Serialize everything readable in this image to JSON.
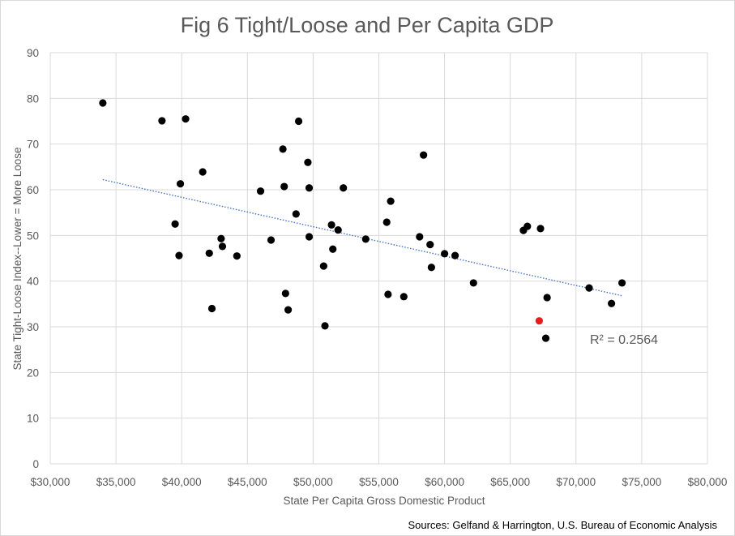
{
  "chart_data": {
    "type": "scatter",
    "title": "Fig 6 Tight/Loose and Per Capita GDP",
    "xlabel": "State Per Capita Gross Domestic Product",
    "ylabel": "State Tight-Loose Index--Lower = More Loose",
    "xlim": [
      30000,
      80000
    ],
    "ylim": [
      0,
      90
    ],
    "x_ticks": [
      30000,
      35000,
      40000,
      45000,
      50000,
      55000,
      60000,
      65000,
      70000,
      75000,
      80000
    ],
    "x_tick_labels": [
      "$30,000",
      "$35,000",
      "$40,000",
      "$45,000",
      "$50,000",
      "$55,000",
      "$60,000",
      "$65,000",
      "$70,000",
      "$75,000",
      "$80,000"
    ],
    "y_ticks": [
      0,
      10,
      20,
      30,
      40,
      50,
      60,
      70,
      80,
      90
    ],
    "y_tick_labels": [
      "0",
      "10",
      "20",
      "30",
      "40",
      "50",
      "60",
      "70",
      "80",
      "90"
    ],
    "grid": true,
    "series": [
      {
        "color": "#000000",
        "points": [
          [
            34000,
            79
          ],
          [
            38500,
            75.1
          ],
          [
            40300,
            75.5
          ],
          [
            39900,
            61.3
          ],
          [
            39500,
            52.5
          ],
          [
            39800,
            45.6
          ],
          [
            41600,
            63.9
          ],
          [
            42100,
            46.1
          ],
          [
            42300,
            34
          ],
          [
            43000,
            49.3
          ],
          [
            43100,
            47.6
          ],
          [
            44200,
            45.5
          ],
          [
            46000,
            59.7
          ],
          [
            46800,
            49
          ],
          [
            47700,
            68.9
          ],
          [
            47800,
            60.7
          ],
          [
            47900,
            37.3
          ],
          [
            48100,
            33.7
          ],
          [
            48700,
            54.7
          ],
          [
            48900,
            75
          ],
          [
            49600,
            66
          ],
          [
            49700,
            60.4
          ],
          [
            49700,
            49.7
          ],
          [
            50800,
            43.3
          ],
          [
            50900,
            30.2
          ],
          [
            51400,
            52.3
          ],
          [
            51500,
            47
          ],
          [
            51900,
            51.2
          ],
          [
            52300,
            60.4
          ],
          [
            54000,
            49.2
          ],
          [
            55600,
            52.9
          ],
          [
            55700,
            37.1
          ],
          [
            55900,
            57.5
          ],
          [
            56900,
            36.6
          ],
          [
            58100,
            49.7
          ],
          [
            58400,
            67.6
          ],
          [
            58900,
            48
          ],
          [
            59000,
            43
          ],
          [
            60000,
            46
          ],
          [
            60800,
            45.6
          ],
          [
            62200,
            39.6
          ],
          [
            66000,
            51.1
          ],
          [
            66300,
            52
          ],
          [
            67300,
            51.5
          ],
          [
            67700,
            27.5
          ],
          [
            67800,
            36.4
          ],
          [
            71000,
            38.5
          ],
          [
            72700,
            35.1
          ],
          [
            73500,
            39.6
          ]
        ]
      },
      {
        "color": "#e81c1c",
        "points": [
          [
            67200,
            31.3
          ]
        ]
      }
    ],
    "trendline": {
      "type": "linear",
      "color": "#4472c4",
      "x_range": [
        34000,
        73500
      ],
      "y_range": [
        62.2,
        36.8
      ],
      "r_squared_label": "R² = 0.2564"
    }
  },
  "footer": {
    "sources": "Sources: Gelfand & Harrington, U.S.  Bureau of Economic Analysis"
  }
}
